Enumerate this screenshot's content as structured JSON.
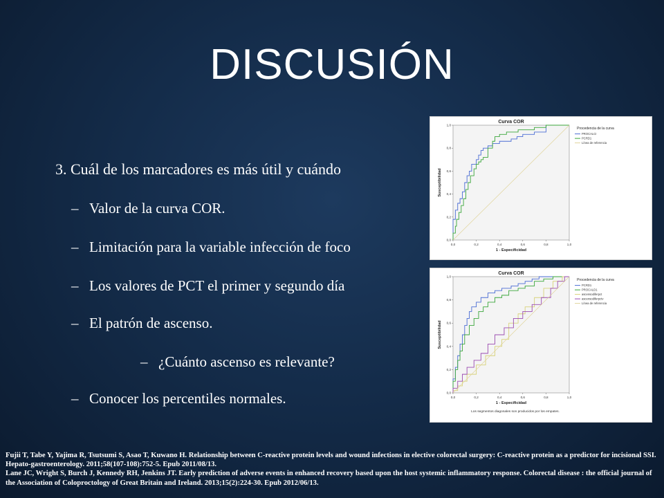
{
  "slide": {
    "title": "DISCUSIÓN",
    "bullets": [
      "3. Cuál de los marcadores es más útil y cuándo",
      "Valor de la curva COR.",
      "Limitación para la variable infección de foco",
      "Los valores de PCT  el primer y segundo día",
      "El patrón de ascenso.",
      "¿Cuánto ascenso es relevante?",
      "Conocer los percentiles normales."
    ],
    "dash": "–",
    "references": [
      "Fujii T, Tabe Y, Yajima R, Tsutsumi S, Asao T, Kuwano H. Relationship between C-reactive protein levels and wound infections in elective colorectal surgery: C-reactive protein as a predictor for incisional SSI. Hepato-gastroenterology. 2011;58(107-108):752-5. Epub 2011/08/13.",
      "Lane JC, Wright S, Burch J, Kennedy RH, Jenkins JT. Early prediction of adverse events in enhanced recovery based upon the host systemic inflammatory response. Colorectal disease : the official journal of the Association of Coloproctology of Great Britain and Ireland. 2013;15(2):224-30. Epub 2012/06/13."
    ]
  },
  "chart_data": [
    {
      "type": "line",
      "title": "Curva COR",
      "xlabel": "1 - Especificidad",
      "ylabel": "Susceptibilidad",
      "xlim": [
        0,
        1
      ],
      "ylim": [
        0,
        1
      ],
      "ticks": [
        "0,0",
        "0,2",
        "0,4",
        "0,6",
        "0,8",
        "1,0"
      ],
      "legend_title": "Procedencia de la curva",
      "legend_position": "right",
      "series": [
        {
          "name": "PROCALCI",
          "color": "#4a6cd4",
          "x": [
            0,
            0,
            0.02,
            0.04,
            0.06,
            0.08,
            0.1,
            0.12,
            0.14,
            0.16,
            0.2,
            0.22,
            0.24,
            0.26,
            0.3,
            0.34,
            0.4,
            0.44,
            0.5,
            0.55,
            0.6,
            0.65,
            0.7,
            0.75,
            0.8,
            0.86,
            0.9,
            1
          ],
          "y": [
            0,
            0.08,
            0.18,
            0.26,
            0.32,
            0.36,
            0.42,
            0.5,
            0.56,
            0.6,
            0.66,
            0.7,
            0.74,
            0.78,
            0.8,
            0.82,
            0.84,
            0.86,
            0.86,
            0.88,
            0.9,
            0.92,
            0.92,
            0.94,
            0.94,
            1,
            1,
            1
          ]
        },
        {
          "name": "PCRD1",
          "color": "#3aa63a",
          "x": [
            0,
            0.02,
            0.03,
            0.05,
            0.07,
            0.09,
            0.11,
            0.13,
            0.15,
            0.18,
            0.2,
            0.22,
            0.24,
            0.26,
            0.3,
            0.34,
            0.36,
            0.4,
            0.46,
            0.52,
            0.56,
            0.62,
            0.7,
            0.8,
            0.85,
            0.9,
            1
          ],
          "y": [
            0,
            0.06,
            0.12,
            0.18,
            0.24,
            0.3,
            0.36,
            0.44,
            0.5,
            0.56,
            0.62,
            0.66,
            0.68,
            0.7,
            0.72,
            0.8,
            0.86,
            0.9,
            0.92,
            0.94,
            0.94,
            0.96,
            0.96,
            0.98,
            1,
            1,
            1
          ]
        },
        {
          "name": "Línea de referencia",
          "color": "#e0d49a",
          "x": [
            0,
            1
          ],
          "y": [
            0,
            1
          ]
        }
      ]
    },
    {
      "type": "line",
      "title": "Curva COR",
      "xlabel": "1 - Especificidad",
      "ylabel": "Susceptibilidad",
      "xlim": [
        0,
        1
      ],
      "ylim": [
        0,
        1
      ],
      "ticks": [
        "0,0",
        "0,2",
        "0,4",
        "0,6",
        "0,8",
        "1,0"
      ],
      "legend_title": "Procedencia de la curva",
      "legend_position": "right",
      "footnote": "Los segmentos diagonales son producidos por los empates.",
      "series": [
        {
          "name": "PCRD1",
          "color": "#4a6cd4",
          "x": [
            0,
            0.02,
            0.04,
            0.06,
            0.08,
            0.1,
            0.12,
            0.14,
            0.16,
            0.2,
            0.24,
            0.3,
            0.36,
            0.42,
            0.5,
            0.56,
            0.62,
            0.68,
            0.74,
            0.8,
            0.86,
            0.92,
            1
          ],
          "y": [
            0,
            0.12,
            0.22,
            0.32,
            0.42,
            0.5,
            0.58,
            0.64,
            0.7,
            0.74,
            0.78,
            0.82,
            0.86,
            0.88,
            0.9,
            0.92,
            0.94,
            0.96,
            0.98,
            1,
            1,
            1,
            1
          ]
        },
        {
          "name": "PROCALD1",
          "color": "#3aa63a",
          "x": [
            0,
            0.02,
            0.04,
            0.06,
            0.08,
            0.1,
            0.14,
            0.18,
            0.22,
            0.26,
            0.3,
            0.36,
            0.42,
            0.48,
            0.56,
            0.62,
            0.7,
            0.78,
            0.86,
            0.92,
            1
          ],
          "y": [
            0,
            0.1,
            0.2,
            0.28,
            0.36,
            0.42,
            0.5,
            0.58,
            0.64,
            0.7,
            0.74,
            0.78,
            0.82,
            0.84,
            0.88,
            0.9,
            0.92,
            0.96,
            0.98,
            1,
            1
          ]
        },
        {
          "name": "ascensodiferpct",
          "color": "#d8d27a",
          "x": [
            0,
            0.04,
            0.08,
            0.12,
            0.2,
            0.28,
            0.36,
            0.42,
            0.48,
            0.56,
            0.62,
            0.7,
            0.78,
            0.86,
            0.94,
            1
          ],
          "y": [
            0,
            0.02,
            0.06,
            0.1,
            0.16,
            0.24,
            0.32,
            0.4,
            0.46,
            0.6,
            0.68,
            0.74,
            0.82,
            0.9,
            0.96,
            1
          ]
        },
        {
          "name": "ascensodiferpctv",
          "color": "#9a4ab0",
          "x": [
            0,
            0.04,
            0.08,
            0.12,
            0.18,
            0.24,
            0.3,
            0.36,
            0.44,
            0.52,
            0.6,
            0.68,
            0.76,
            0.84,
            0.9,
            0.96,
            1
          ],
          "y": [
            0,
            0.04,
            0.1,
            0.16,
            0.22,
            0.28,
            0.34,
            0.42,
            0.5,
            0.56,
            0.64,
            0.7,
            0.76,
            0.82,
            0.9,
            0.96,
            1
          ]
        },
        {
          "name": "Línea de referencia",
          "color": "#e0d49a",
          "x": [
            0,
            1
          ],
          "y": [
            0,
            1
          ]
        }
      ]
    }
  ]
}
